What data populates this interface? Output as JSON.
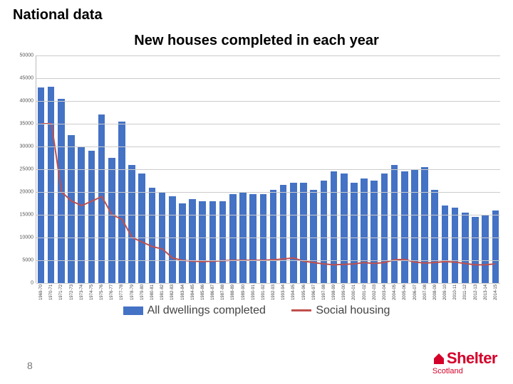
{
  "section_title": "National data",
  "chart": {
    "type": "bar+line",
    "title": "New houses completed in each year",
    "ylim": [
      0,
      50000
    ],
    "ytick_step": 5000,
    "bar_color": "#4472c4",
    "line_color": "#c0504d",
    "grid_color": "#cccccc",
    "background_color": "#ffffff",
    "title_fontsize": 20,
    "axis_fontsize": 7,
    "bar_width": 0.68,
    "line_width": 2,
    "categories": [
      "1969-70",
      "1970-71",
      "1971-72",
      "1972-73",
      "1973-74",
      "1974-75",
      "1975-76",
      "1976-77",
      "1977-78",
      "1978-79",
      "1979-80",
      "1980-81",
      "1981-82",
      "1982-83",
      "1983-84",
      "1984-85",
      "1985-86",
      "1986-87",
      "1987-88",
      "1988-89",
      "1989-90",
      "1990-91",
      "1991-92",
      "1992-93",
      "1993-94",
      "1994-95",
      "1995-96",
      "1996-97",
      "1997-98",
      "1998-99",
      "1999-00",
      "2000-01",
      "2001-02",
      "2002-03",
      "2003-04",
      "2004-05",
      "2005-06",
      "2006-07",
      "2007-08",
      "2008-09",
      "2009-10",
      "2010-11",
      "2011-12",
      "2012-13",
      "2013-14",
      "2014-15"
    ],
    "all_dwellings": [
      43000,
      43200,
      40500,
      32500,
      30000,
      29000,
      37000,
      27500,
      35500,
      26000,
      24000,
      21000,
      20000,
      19000,
      17500,
      18500,
      18000,
      18000,
      18000,
      19500,
      20000,
      19500,
      19500,
      20500,
      21500,
      22000,
      22000,
      20500,
      22500,
      24500,
      24000,
      22000,
      23000,
      22500,
      24000,
      26000,
      24500,
      25000,
      25500,
      20500,
      17000,
      16500,
      15500,
      14500,
      15000,
      16000
    ],
    "social_housing": [
      35000,
      35000,
      20000,
      18000,
      17000,
      18000,
      19000,
      15000,
      14000,
      10000,
      9000,
      8000,
      7500,
      5500,
      5000,
      4800,
      4700,
      4800,
      4900,
      5000,
      5000,
      5000,
      5000,
      5100,
      5300,
      5500,
      4800,
      4500,
      4200,
      4000,
      4100,
      4200,
      4500,
      4300,
      4500,
      5100,
      5200,
      4600,
      4400,
      4500,
      4700,
      4600,
      4300,
      4000,
      4000,
      4200
    ]
  },
  "legend": {
    "series1": "All dwellings completed",
    "series2": "Social housing"
  },
  "page_number": "8",
  "logo": {
    "main": "Shelter",
    "sub": "Scotland",
    "color": "#d4002a"
  }
}
